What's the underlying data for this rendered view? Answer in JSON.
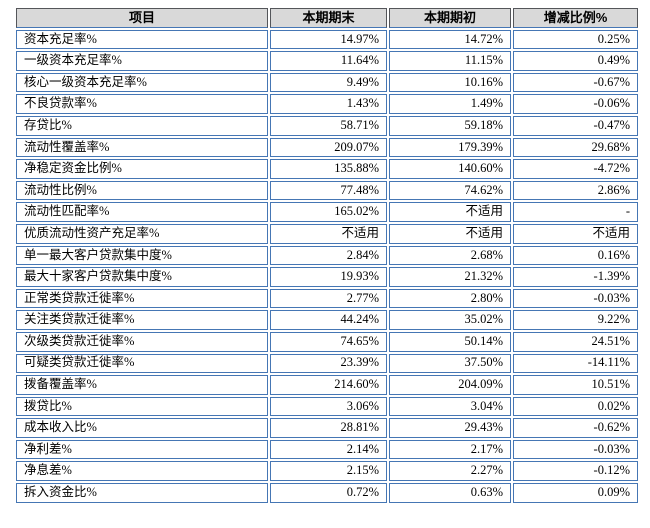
{
  "table": {
    "columns": [
      "项目",
      "本期期末",
      "本期期初",
      "增减比例%"
    ],
    "rows": [
      {
        "item": "资本充足率%",
        "end": "14.97%",
        "begin": "14.72%",
        "change": "0.25%"
      },
      {
        "item": "一级资本充足率%",
        "end": "11.64%",
        "begin": "11.15%",
        "change": "0.49%"
      },
      {
        "item": "核心一级资本充足率%",
        "end": "9.49%",
        "begin": "10.16%",
        "change": "-0.67%"
      },
      {
        "item": "不良贷款率%",
        "end": "1.43%",
        "begin": "1.49%",
        "change": "-0.06%"
      },
      {
        "item": "存贷比%",
        "end": "58.71%",
        "begin": "59.18%",
        "change": "-0.47%"
      },
      {
        "item": "流动性覆盖率%",
        "end": "209.07%",
        "begin": "179.39%",
        "change": "29.68%"
      },
      {
        "item": "净稳定资金比例%",
        "end": "135.88%",
        "begin": "140.60%",
        "change": "-4.72%"
      },
      {
        "item": "流动性比例%",
        "end": "77.48%",
        "begin": "74.62%",
        "change": "2.86%"
      },
      {
        "item": "流动性匹配率%",
        "end": "165.02%",
        "begin": "不适用",
        "change": "-"
      },
      {
        "item": "优质流动性资产充足率%",
        "end": "不适用",
        "begin": "不适用",
        "change": "不适用"
      },
      {
        "item": "单一最大客户贷款集中度%",
        "end": "2.84%",
        "begin": "2.68%",
        "change": "0.16%"
      },
      {
        "item": "最大十家客户贷款集中度%",
        "end": "19.93%",
        "begin": "21.32%",
        "change": "-1.39%"
      },
      {
        "item": "正常类贷款迁徙率%",
        "end": "2.77%",
        "begin": "2.80%",
        "change": "-0.03%"
      },
      {
        "item": "关注类贷款迁徙率%",
        "end": "44.24%",
        "begin": "35.02%",
        "change": "9.22%"
      },
      {
        "item": "次级类贷款迁徙率%",
        "end": "74.65%",
        "begin": "50.14%",
        "change": "24.51%"
      },
      {
        "item": "可疑类贷款迁徙率%",
        "end": "23.39%",
        "begin": "37.50%",
        "change": "-14.11%"
      },
      {
        "item": "拨备覆盖率%",
        "end": "214.60%",
        "begin": "204.09%",
        "change": "10.51%"
      },
      {
        "item": "拨贷比%",
        "end": "3.06%",
        "begin": "3.04%",
        "change": "0.02%"
      },
      {
        "item": "成本收入比%",
        "end": "28.81%",
        "begin": "29.43%",
        "change": "-0.62%"
      },
      {
        "item": "净利差%",
        "end": "2.14%",
        "begin": "2.17%",
        "change": "-0.03%"
      },
      {
        "item": "净息差%",
        "end": "2.15%",
        "begin": "2.27%",
        "change": "-0.12%"
      },
      {
        "item": "拆入资金比%",
        "end": "0.72%",
        "begin": "0.63%",
        "change": "0.09%"
      }
    ],
    "colors": {
      "cell_border": "#4576b4",
      "header_border": "#54565a",
      "header_bg": "#d9d9d9",
      "cell_bg": "#ffffff",
      "text": "#000000"
    }
  }
}
